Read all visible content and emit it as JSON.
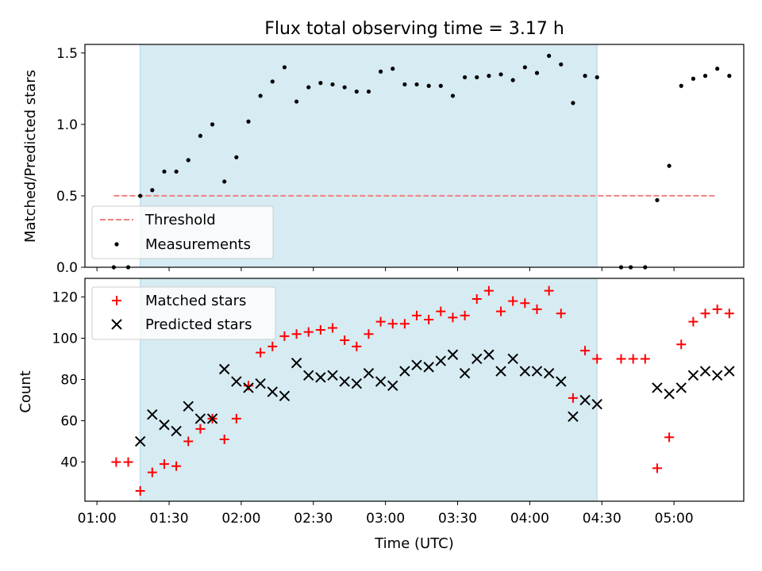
{
  "chart_data": [
    {
      "type": "scatter",
      "title": "Flux total observing time = 3.17 h",
      "ylabel": "Matched/Predicted stars",
      "ylim": [
        0,
        1.56
      ],
      "yticks": [
        {
          "v": 0,
          "label": "0.0"
        },
        {
          "v": 0.5,
          "label": "0.5"
        },
        {
          "v": 1.0,
          "label": "1.0"
        },
        {
          "v": 1.5,
          "label": "1.5"
        }
      ],
      "xlim": [
        "00:55",
        "05:29"
      ],
      "highlight_span": [
        "01:18",
        "04:28"
      ],
      "threshold": {
        "name": "Threshold",
        "value": 0.5,
        "x_start": "01:07",
        "x_end": "05:17",
        "color": "#f08080"
      },
      "legend": {
        "placement": "lower-left",
        "entries": [
          "Threshold",
          "Measurements"
        ]
      },
      "series": [
        {
          "name": "Measurements",
          "color": "#000000",
          "points": [
            [
              "01:07",
              0.0
            ],
            [
              "01:13",
              0.0
            ],
            [
              "01:18",
              0.5
            ],
            [
              "01:23",
              0.54
            ],
            [
              "01:28",
              0.67
            ],
            [
              "01:33",
              0.67
            ],
            [
              "01:38",
              0.75
            ],
            [
              "01:43",
              0.92
            ],
            [
              "01:48",
              1.0
            ],
            [
              "01:53",
              0.6
            ],
            [
              "01:58",
              0.77
            ],
            [
              "02:03",
              1.02
            ],
            [
              "02:08",
              1.2
            ],
            [
              "02:13",
              1.3
            ],
            [
              "02:18",
              1.4
            ],
            [
              "02:23",
              1.16
            ],
            [
              "02:28",
              1.26
            ],
            [
              "02:33",
              1.29
            ],
            [
              "02:38",
              1.28
            ],
            [
              "02:43",
              1.26
            ],
            [
              "02:48",
              1.23
            ],
            [
              "02:53",
              1.23
            ],
            [
              "02:58",
              1.37
            ],
            [
              "03:03",
              1.39
            ],
            [
              "03:08",
              1.28
            ],
            [
              "03:13",
              1.28
            ],
            [
              "03:18",
              1.27
            ],
            [
              "03:23",
              1.27
            ],
            [
              "03:28",
              1.2
            ],
            [
              "03:33",
              1.33
            ],
            [
              "03:38",
              1.33
            ],
            [
              "03:43",
              1.34
            ],
            [
              "03:48",
              1.35
            ],
            [
              "03:53",
              1.31
            ],
            [
              "03:58",
              1.4
            ],
            [
              "04:03",
              1.36
            ],
            [
              "04:08",
              1.48
            ],
            [
              "04:13",
              1.42
            ],
            [
              "04:18",
              1.15
            ],
            [
              "04:23",
              1.34
            ],
            [
              "04:28",
              1.33
            ],
            [
              "04:38",
              0.0
            ],
            [
              "04:42",
              0.0
            ],
            [
              "04:48",
              0.0
            ],
            [
              "04:53",
              0.47
            ],
            [
              "04:58",
              0.71
            ],
            [
              "05:03",
              1.27
            ],
            [
              "05:08",
              1.32
            ],
            [
              "05:13",
              1.34
            ],
            [
              "05:18",
              1.39
            ],
            [
              "05:23",
              1.34
            ]
          ]
        }
      ]
    },
    {
      "type": "scatter",
      "xlabel": "Time (UTC)",
      "ylabel": "Count",
      "ylim": [
        21,
        129
      ],
      "yticks": [
        {
          "v": 40,
          "label": "40"
        },
        {
          "v": 60,
          "label": "60"
        },
        {
          "v": 80,
          "label": "80"
        },
        {
          "v": 100,
          "label": "100"
        },
        {
          "v": 120,
          "label": "120"
        }
      ],
      "xlim": [
        "00:55",
        "05:29"
      ],
      "xticks": [
        "01:00",
        "01:30",
        "02:00",
        "02:30",
        "03:00",
        "03:30",
        "04:00",
        "04:30",
        "05:00"
      ],
      "xticklabels": [
        "01:00",
        "01:30",
        "02:00",
        "02:30",
        "03:00",
        "03:30",
        "04:00",
        "04:30",
        "05:00"
      ],
      "highlight_span": [
        "01:18",
        "04:28"
      ],
      "legend": {
        "placement": "upper-left",
        "entries": [
          "Matched stars",
          "Predicted stars"
        ]
      },
      "series": [
        {
          "name": "Matched stars",
          "marker": "+",
          "color": "#ff0000",
          "points": [
            [
              "01:08",
              40
            ],
            [
              "01:13",
              40
            ],
            [
              "01:18",
              26
            ],
            [
              "01:23",
              35
            ],
            [
              "01:28",
              39
            ],
            [
              "01:33",
              38
            ],
            [
              "01:38",
              50
            ],
            [
              "01:43",
              56
            ],
            [
              "01:48",
              61
            ],
            [
              "01:53",
              51
            ],
            [
              "01:58",
              61
            ],
            [
              "02:03",
              77
            ],
            [
              "02:08",
              93
            ],
            [
              "02:13",
              96
            ],
            [
              "02:18",
              101
            ],
            [
              "02:23",
              102
            ],
            [
              "02:28",
              103
            ],
            [
              "02:33",
              104
            ],
            [
              "02:38",
              105
            ],
            [
              "02:43",
              99
            ],
            [
              "02:48",
              96
            ],
            [
              "02:53",
              102
            ],
            [
              "02:58",
              108
            ],
            [
              "03:03",
              107
            ],
            [
              "03:08",
              107
            ],
            [
              "03:13",
              111
            ],
            [
              "03:18",
              109
            ],
            [
              "03:23",
              113
            ],
            [
              "03:28",
              110
            ],
            [
              "03:33",
              111
            ],
            [
              "03:38",
              119
            ],
            [
              "03:43",
              123
            ],
            [
              "03:48",
              113
            ],
            [
              "03:53",
              118
            ],
            [
              "03:58",
              117
            ],
            [
              "04:03",
              114
            ],
            [
              "04:08",
              123
            ],
            [
              "04:13",
              112
            ],
            [
              "04:18",
              71
            ],
            [
              "04:23",
              94
            ],
            [
              "04:28",
              90
            ],
            [
              "04:38",
              90
            ],
            [
              "04:43",
              90
            ],
            [
              "04:48",
              90
            ],
            [
              "04:53",
              37
            ],
            [
              "04:58",
              52
            ],
            [
              "05:03",
              97
            ],
            [
              "05:08",
              108
            ],
            [
              "05:13",
              112
            ],
            [
              "05:18",
              114
            ],
            [
              "05:23",
              112
            ]
          ]
        },
        {
          "name": "Predicted stars",
          "marker": "x",
          "color": "#000000",
          "points": [
            [
              "01:18",
              50
            ],
            [
              "01:23",
              63
            ],
            [
              "01:28",
              58
            ],
            [
              "01:33",
              55
            ],
            [
              "01:38",
              67
            ],
            [
              "01:43",
              61
            ],
            [
              "01:48",
              61
            ],
            [
              "01:53",
              85
            ],
            [
              "01:58",
              79
            ],
            [
              "02:03",
              76
            ],
            [
              "02:08",
              78
            ],
            [
              "02:13",
              74
            ],
            [
              "02:18",
              72
            ],
            [
              "02:23",
              88
            ],
            [
              "02:28",
              82
            ],
            [
              "02:33",
              81
            ],
            [
              "02:38",
              82
            ],
            [
              "02:43",
              79
            ],
            [
              "02:48",
              78
            ],
            [
              "02:53",
              83
            ],
            [
              "02:58",
              79
            ],
            [
              "03:03",
              77
            ],
            [
              "03:08",
              84
            ],
            [
              "03:13",
              87
            ],
            [
              "03:18",
              86
            ],
            [
              "03:23",
              89
            ],
            [
              "03:28",
              92
            ],
            [
              "03:33",
              83
            ],
            [
              "03:38",
              90
            ],
            [
              "03:43",
              92
            ],
            [
              "03:48",
              84
            ],
            [
              "03:53",
              90
            ],
            [
              "03:58",
              84
            ],
            [
              "04:03",
              84
            ],
            [
              "04:08",
              83
            ],
            [
              "04:13",
              79
            ],
            [
              "04:18",
              62
            ],
            [
              "04:23",
              70
            ],
            [
              "04:28",
              68
            ],
            [
              "04:53",
              76
            ],
            [
              "04:58",
              73
            ],
            [
              "05:03",
              76
            ],
            [
              "05:08",
              82
            ],
            [
              "05:13",
              84
            ],
            [
              "05:18",
              82
            ],
            [
              "05:23",
              84
            ]
          ]
        }
      ]
    }
  ]
}
